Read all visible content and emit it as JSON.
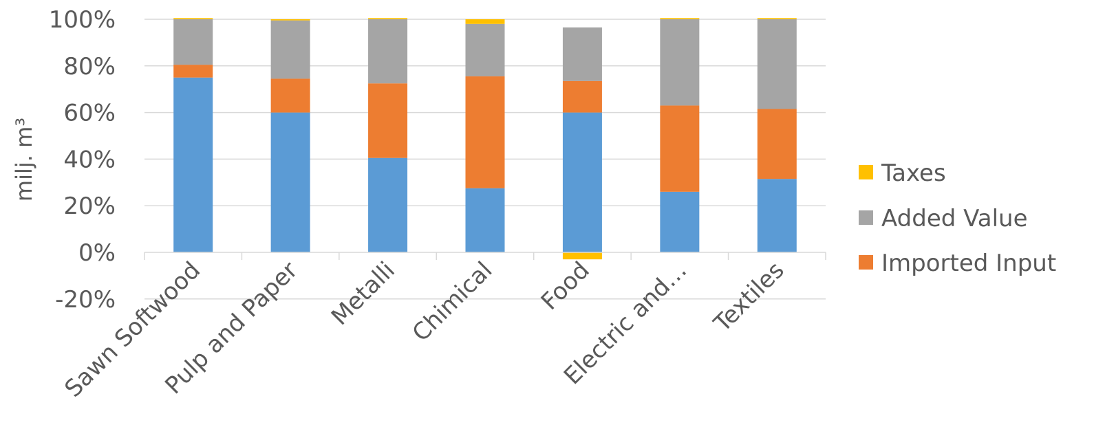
{
  "chart_data": {
    "type": "bar",
    "stacked": true,
    "categories": [
      "Sawn Softwood",
      "Pulp and Paper",
      "Metalli",
      "Chimical",
      "Food",
      "Electric and…",
      "Textiles"
    ],
    "series": [
      {
        "name": "",
        "color": "#5B9BD5",
        "values": [
          75,
          60,
          40.5,
          27.5,
          60,
          26,
          31.5
        ]
      },
      {
        "name": "Imported Input",
        "color": "#ED7D31",
        "values": [
          5.5,
          14.5,
          32,
          48,
          13.5,
          37,
          30
        ]
      },
      {
        "name": "Added Value",
        "color": "#A5A5A5",
        "values": [
          19.5,
          25,
          27.5,
          22.5,
          23,
          37,
          38.5
        ]
      },
      {
        "name": "Taxes",
        "color": "#FFC000",
        "values": [
          0.5,
          0.5,
          0.5,
          2,
          -3,
          0.5,
          0.5
        ]
      }
    ],
    "ylabel": "milj. m³",
    "ylim": [
      -20,
      100
    ],
    "yticks": [
      "-20%",
      "0%",
      "20%",
      "40%",
      "60%",
      "80%",
      "100%"
    ],
    "grid": true,
    "legend": "right",
    "legend_entries": [
      "Taxes",
      "Added Value",
      "Imported Input"
    ]
  }
}
